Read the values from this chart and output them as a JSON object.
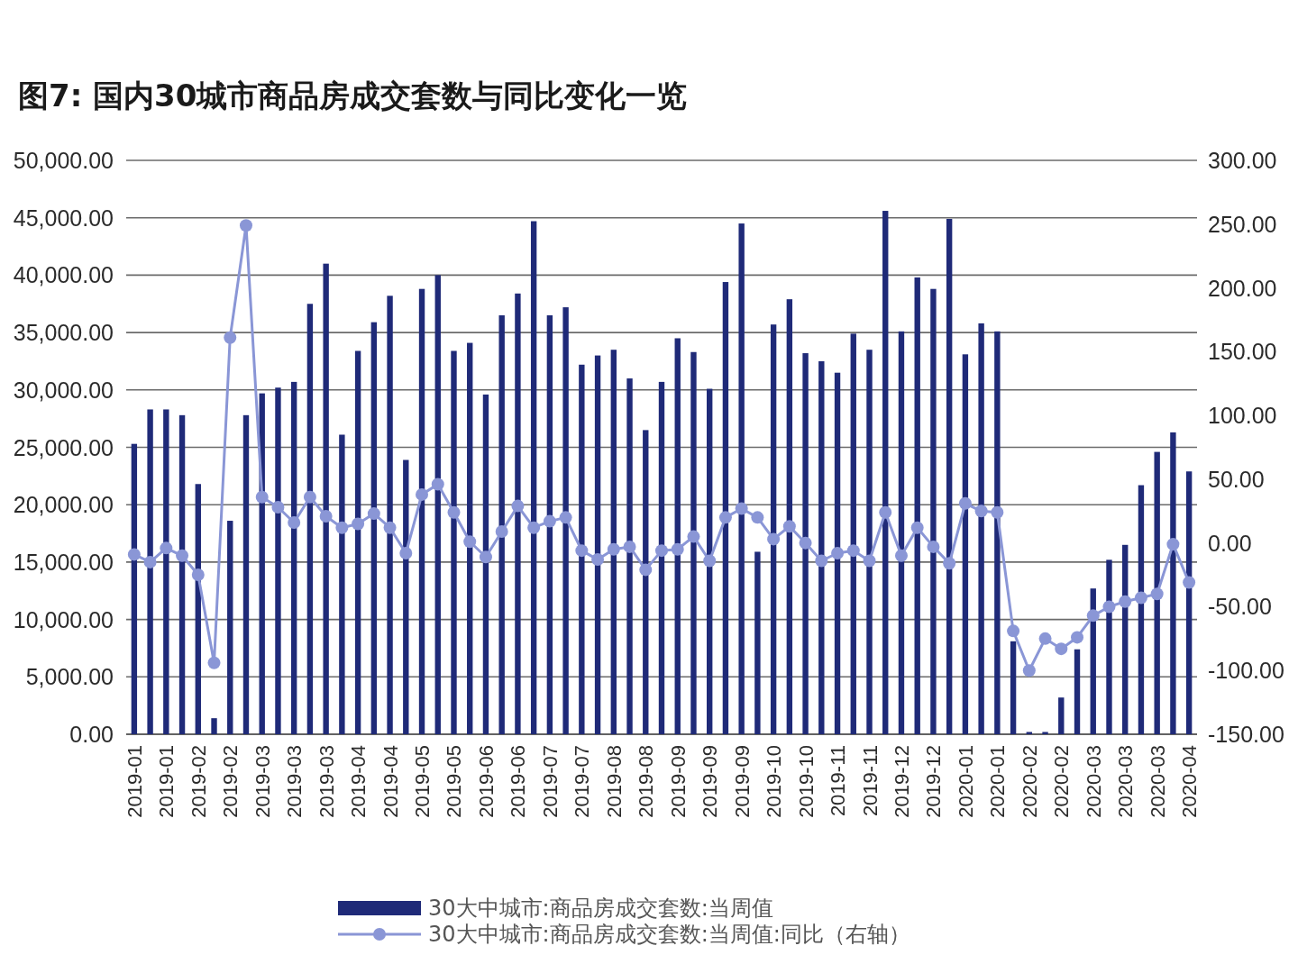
{
  "chart_data": {
    "type": "bar",
    "title": "图7: 国内30城市商品房成交套数与同比变化一览",
    "categories": [
      "2019-01",
      null,
      "2019-01",
      null,
      "2019-02",
      null,
      "2019-02",
      null,
      "2019-03",
      null,
      "2019-03",
      null,
      "2019-03",
      null,
      "2019-04",
      null,
      "2019-04",
      null,
      "2019-05",
      null,
      "2019-05",
      null,
      "2019-06",
      null,
      "2019-06",
      null,
      "2019-07",
      null,
      "2019-07",
      null,
      "2019-08",
      null,
      "2019-08",
      null,
      "2019-09",
      null,
      "2019-09",
      null,
      "2019-09",
      null,
      "2019-10",
      null,
      "2019-10",
      null,
      "2019-11",
      null,
      "2019-11",
      null,
      "2019-12",
      null,
      "2019-12",
      null,
      "2020-01",
      null,
      "2020-01",
      null,
      "2020-02",
      null,
      "2020-02",
      null,
      "2020-03",
      null,
      "2020-03",
      null,
      "2020-03",
      null,
      "2020-04"
    ],
    "series": [
      {
        "name": "30大中城市:商品房成交套数:当周值",
        "color": "#1f2a78",
        "values": [
          25300,
          28300,
          28300,
          27800,
          21800,
          1400,
          18600,
          27800,
          29700,
          30200,
          30700,
          37500,
          41000,
          26100,
          33400,
          35900,
          38200,
          23900,
          38800,
          40000,
          33400,
          34100,
          29600,
          36500,
          38400,
          44700,
          36500,
          37200,
          32200,
          33000,
          33500,
          31000,
          26500,
          30700,
          34500,
          33300,
          30100,
          39400,
          44500,
          15900,
          35700,
          37900,
          33200,
          32500,
          31500,
          34900,
          33500,
          45600,
          35100,
          39800,
          38800,
          44900,
          33100,
          35800,
          35100,
          8100,
          200,
          200,
          3200,
          7400,
          12700,
          15200,
          16500,
          21700,
          24600,
          26300,
          22900
        ]
      },
      {
        "name": "30大中城市:商品房成交套数:当周值:同比（右轴）",
        "type": "line",
        "axis": "y2",
        "color": "#8a96d6",
        "values": [
          -9,
          -15,
          -4,
          -10,
          -25,
          -94,
          161,
          249,
          36,
          28,
          16,
          36,
          21,
          12,
          15,
          23,
          12,
          -8,
          38,
          46,
          24,
          1,
          -11,
          9,
          29,
          12,
          17,
          20,
          -6,
          -13,
          -5,
          -3,
          -21,
          -6,
          -5,
          5,
          -14,
          20,
          27,
          20,
          3,
          13,
          0,
          -14,
          -8,
          -6,
          -14,
          24,
          -10,
          12,
          -3,
          -16,
          31,
          25,
          24,
          -69,
          -100,
          -75,
          -83,
          -74,
          -57,
          -50,
          -46,
          -43,
          -40,
          -1,
          -31
        ]
      }
    ],
    "ylim": [
      0,
      50000
    ],
    "yticks": [
      {
        "value": 0,
        "label": "0.00"
      },
      {
        "value": 5000,
        "label": "5,000.00"
      },
      {
        "value": 10000,
        "label": "10,000.00"
      },
      {
        "value": 15000,
        "label": "15,000.00"
      },
      {
        "value": 20000,
        "label": "20,000.00"
      },
      {
        "value": 25000,
        "label": "25,000.00"
      },
      {
        "value": 30000,
        "label": "30,000.00"
      },
      {
        "value": 35000,
        "label": "35,000.00"
      },
      {
        "value": 40000,
        "label": "40,000.00"
      },
      {
        "value": 45000,
        "label": "45,000.00"
      },
      {
        "value": 50000,
        "label": "50,000.00"
      }
    ],
    "y2lim": [
      -150,
      300
    ],
    "y2ticks": [
      {
        "value": -150,
        "label": "-150.00"
      },
      {
        "value": -100,
        "label": "-100.00"
      },
      {
        "value": -50,
        "label": "-50.00"
      },
      {
        "value": 0,
        "label": "0.00"
      },
      {
        "value": 50,
        "label": "50.00"
      },
      {
        "value": 100,
        "label": "100.00"
      },
      {
        "value": 150,
        "label": "150.00"
      },
      {
        "value": 200,
        "label": "200.00"
      },
      {
        "value": 250,
        "label": "250.00"
      },
      {
        "value": 300,
        "label": "300.00"
      }
    ],
    "grid": "y",
    "legend": "bottom",
    "marker": "circle"
  }
}
